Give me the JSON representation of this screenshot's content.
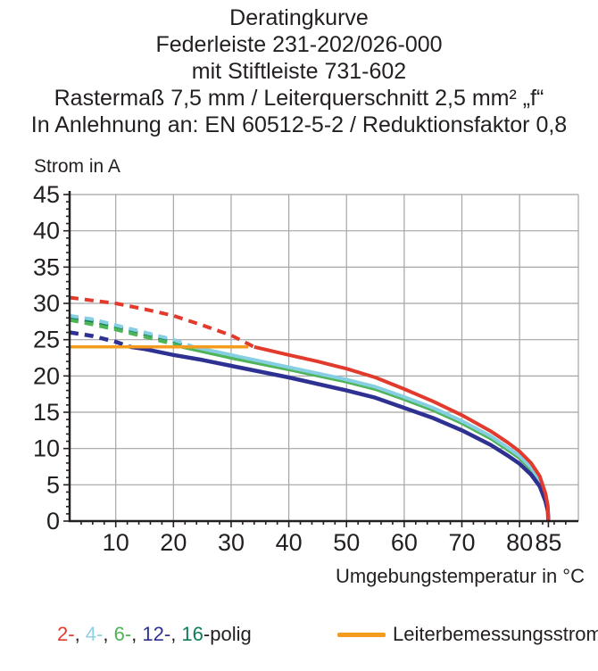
{
  "title": {
    "lines": [
      "Deratingkurve",
      "Federleiste 231-202/026-000",
      "mit Stiftleiste 731-602",
      "Rastermaß 7,5 mm / Leiterquerschnitt 2,5 mm² „f“",
      "In Anlehnung an: EN 60512-5-2 / Reduktionsfaktor 0,8"
    ]
  },
  "legend": {
    "series_segments": [
      {
        "text": "2-",
        "color": "#e23a2c"
      },
      {
        "text": ", ",
        "color": "#231f20"
      },
      {
        "text": "4-",
        "color": "#8fd2e4"
      },
      {
        "text": ", ",
        "color": "#231f20"
      },
      {
        "text": "6-",
        "color": "#4fb457"
      },
      {
        "text": ", ",
        "color": "#231f20"
      },
      {
        "text": "12-",
        "color": "#2e3192"
      },
      {
        "text": ", ",
        "color": "#231f20"
      },
      {
        "text": "16",
        "color": "#0e7e57"
      },
      {
        "text": "-polig",
        "color": "#231f20"
      }
    ],
    "rated_current_label": "Leiterbemessungsstrom",
    "rated_current_color": "#f49b20"
  },
  "chart_data": {
    "type": "line",
    "title": "Deratingkurve",
    "xlabel": "Umgebungstemperatur in °C",
    "ylabel": "Strom in A",
    "xlim": [
      2,
      90
    ],
    "ylim": [
      0,
      45
    ],
    "x_major_ticks": [
      10,
      20,
      30,
      40,
      50,
      60,
      70,
      80,
      85
    ],
    "x_grid_ticks": [
      10,
      20,
      30,
      40,
      50,
      60,
      70,
      80
    ],
    "y_major_ticks": [
      0,
      5,
      10,
      15,
      20,
      25,
      30,
      35,
      40,
      45
    ],
    "x_minor_step": 2,
    "y_minor_step": 1,
    "grid": true,
    "grid_color": "#a5a5a5",
    "axis_color": "#231f20",
    "note": "curves are dashed above 24 A (Leiterbemessungsstrom) and solid below it; all curves fall to 0 A at 85 °C",
    "series": [
      {
        "name": "16-polig",
        "color": "#0e7e57",
        "width": 4,
        "solid_from": 22.5,
        "points": [
          [
            2,
            28.0
          ],
          [
            6,
            27.5
          ],
          [
            10,
            26.7
          ],
          [
            15,
            25.7
          ],
          [
            20,
            24.7
          ],
          [
            22.5,
            24.0
          ],
          [
            30,
            22.7
          ],
          [
            40,
            21.1
          ],
          [
            50,
            19.4
          ],
          [
            55,
            18.4
          ],
          [
            60,
            17.0
          ],
          [
            65,
            15.5
          ],
          [
            70,
            13.7
          ],
          [
            75,
            11.6
          ],
          [
            78,
            10.0
          ],
          [
            80,
            8.9
          ],
          [
            82,
            7.3
          ],
          [
            83.5,
            5.6
          ],
          [
            84.5,
            3.3
          ],
          [
            84.9,
            1.8
          ],
          [
            85,
            0
          ]
        ]
      },
      {
        "name": "6-polig",
        "color": "#4fb457",
        "width": 4,
        "solid_from": 21.5,
        "points": [
          [
            2,
            27.7
          ],
          [
            6,
            27.1
          ],
          [
            10,
            26.4
          ],
          [
            15,
            25.4
          ],
          [
            20,
            24.4
          ],
          [
            21.5,
            24.0
          ],
          [
            30,
            22.5
          ],
          [
            40,
            20.9
          ],
          [
            50,
            19.2
          ],
          [
            55,
            18.2
          ],
          [
            60,
            16.8
          ],
          [
            65,
            15.3
          ],
          [
            70,
            13.5
          ],
          [
            75,
            11.4
          ],
          [
            78,
            9.8
          ],
          [
            80,
            8.7
          ],
          [
            82,
            7.1
          ],
          [
            83.5,
            5.4
          ],
          [
            84.5,
            3.1
          ],
          [
            84.9,
            1.6
          ],
          [
            85,
            0
          ]
        ]
      },
      {
        "name": "4-polig",
        "color": "#86cfe3",
        "width": 4,
        "solid_from": 23.5,
        "points": [
          [
            2,
            28.3
          ],
          [
            6,
            27.8
          ],
          [
            10,
            27.0
          ],
          [
            15,
            26.0
          ],
          [
            20,
            25.0
          ],
          [
            23.5,
            24.0
          ],
          [
            30,
            22.9
          ],
          [
            40,
            21.2
          ],
          [
            50,
            19.5
          ],
          [
            55,
            18.5
          ],
          [
            60,
            17.1
          ],
          [
            65,
            15.6
          ],
          [
            70,
            13.8
          ],
          [
            75,
            11.7
          ],
          [
            78,
            10.1
          ],
          [
            80,
            9.0
          ],
          [
            82,
            7.4
          ],
          [
            83.5,
            5.7
          ],
          [
            84.5,
            3.4
          ],
          [
            84.9,
            1.9
          ],
          [
            85,
            0
          ]
        ]
      },
      {
        "name": "12-polig",
        "color": "#2e3192",
        "width": 4.5,
        "solid_from": 12.5,
        "points": [
          [
            2,
            26.0
          ],
          [
            6,
            25.5
          ],
          [
            10,
            24.7
          ],
          [
            12.5,
            24.0
          ],
          [
            15,
            23.7
          ],
          [
            20,
            22.9
          ],
          [
            25,
            22.2
          ],
          [
            30,
            21.4
          ],
          [
            40,
            19.8
          ],
          [
            50,
            18.0
          ],
          [
            55,
            17.0
          ],
          [
            60,
            15.6
          ],
          [
            65,
            14.2
          ],
          [
            70,
            12.5
          ],
          [
            75,
            10.5
          ],
          [
            78,
            9.0
          ],
          [
            80,
            7.9
          ],
          [
            82,
            6.4
          ],
          [
            83.5,
            4.8
          ],
          [
            84.5,
            2.7
          ],
          [
            84.9,
            1.4
          ],
          [
            85,
            0
          ]
        ]
      },
      {
        "name": "2-polig",
        "color": "#e23a2c",
        "width": 4,
        "solid_from": 34,
        "points": [
          [
            2,
            30.8
          ],
          [
            6,
            30.4
          ],
          [
            10,
            30.0
          ],
          [
            15,
            29.2
          ],
          [
            20,
            28.3
          ],
          [
            25,
            27.0
          ],
          [
            30,
            25.6
          ],
          [
            34,
            24.0
          ],
          [
            40,
            22.9
          ],
          [
            45,
            22.0
          ],
          [
            50,
            21.0
          ],
          [
            55,
            19.8
          ],
          [
            60,
            18.2
          ],
          [
            65,
            16.5
          ],
          [
            70,
            14.6
          ],
          [
            75,
            12.4
          ],
          [
            78,
            10.8
          ],
          [
            80,
            9.6
          ],
          [
            82,
            8.0
          ],
          [
            83.5,
            6.2
          ],
          [
            84.5,
            3.8
          ],
          [
            84.9,
            2.1
          ],
          [
            85,
            0
          ]
        ]
      },
      {
        "name": "Leiterbemessungsstrom",
        "color": "#f49b20",
        "width": 3.5,
        "points": [
          [
            2,
            24
          ],
          [
            33,
            24
          ]
        ]
      }
    ]
  }
}
